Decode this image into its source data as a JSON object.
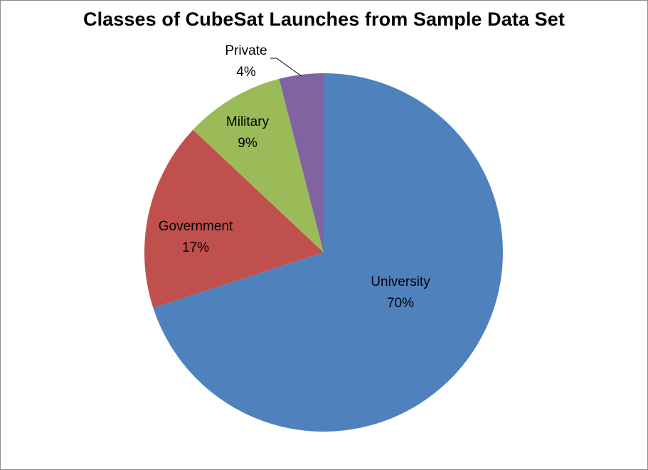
{
  "chart_data": {
    "type": "pie",
    "title": "Classes of CubeSat Launches from Sample Data Set",
    "slices": [
      {
        "label": "University",
        "value": 70,
        "value_label": "70%",
        "color": "#4F81BD"
      },
      {
        "label": "Government",
        "value": 17,
        "value_label": "17%",
        "color": "#C0504D"
      },
      {
        "label": "Military",
        "value": 9,
        "value_label": "9%",
        "color": "#9BBB59"
      },
      {
        "label": "Private",
        "value": 4,
        "value_label": "4%",
        "color": "#8064A2"
      }
    ],
    "start_angle": "12 o'clock",
    "direction": "clockwise",
    "legend": "none",
    "label_style": "category name and percentage on slices; Private label outside with leader line"
  }
}
